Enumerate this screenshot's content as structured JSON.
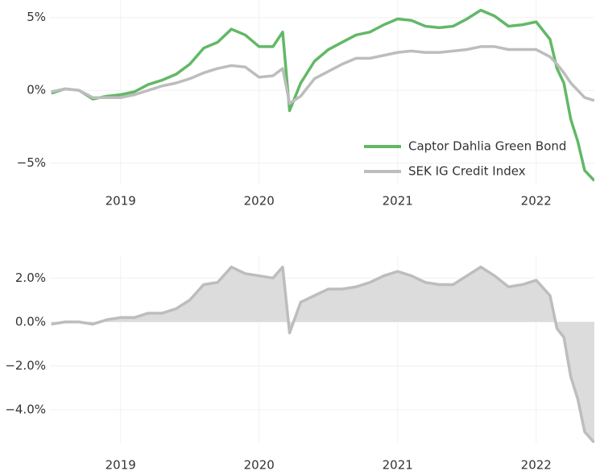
{
  "chart_data": [
    {
      "type": "line",
      "x": [
        2018.5,
        2018.6,
        2018.7,
        2018.8,
        2018.9,
        2019.0,
        2019.1,
        2019.2,
        2019.3,
        2019.4,
        2019.5,
        2019.6,
        2019.7,
        2019.8,
        2019.9,
        2020.0,
        2020.1,
        2020.17,
        2020.22,
        2020.3,
        2020.4,
        2020.5,
        2020.6,
        2020.7,
        2020.8,
        2020.9,
        2021.0,
        2021.1,
        2021.2,
        2021.3,
        2021.4,
        2021.5,
        2021.6,
        2021.7,
        2021.8,
        2021.9,
        2022.0,
        2022.1,
        2022.15,
        2022.2,
        2022.25,
        2022.3,
        2022.35,
        2022.42
      ],
      "series": [
        {
          "name": "Captor Dahlia Green Bond",
          "color": "#62b866",
          "values": [
            -0.2,
            0.1,
            0.0,
            -0.6,
            -0.4,
            -0.3,
            -0.1,
            0.4,
            0.7,
            1.1,
            1.8,
            2.9,
            3.3,
            4.2,
            3.8,
            3.0,
            3.0,
            4.0,
            -1.4,
            0.5,
            2.0,
            2.8,
            3.3,
            3.8,
            4.0,
            4.5,
            4.9,
            4.8,
            4.4,
            4.3,
            4.4,
            4.9,
            5.5,
            5.1,
            4.4,
            4.5,
            4.7,
            3.5,
            1.5,
            0.5,
            -2.0,
            -3.5,
            -5.5,
            -6.2
          ]
        },
        {
          "name": "SEK IG Credit Index",
          "color": "#bdbdbd",
          "values": [
            -0.1,
            0.1,
            0.0,
            -0.5,
            -0.5,
            -0.5,
            -0.3,
            0.0,
            0.3,
            0.5,
            0.8,
            1.2,
            1.5,
            1.7,
            1.6,
            0.9,
            1.0,
            1.5,
            -0.9,
            -0.4,
            0.8,
            1.3,
            1.8,
            2.2,
            2.2,
            2.4,
            2.6,
            2.7,
            2.6,
            2.6,
            2.7,
            2.8,
            3.0,
            3.0,
            2.8,
            2.8,
            2.8,
            2.3,
            1.8,
            1.2,
            0.5,
            0.0,
            -0.5,
            -0.7
          ]
        }
      ],
      "xlim": [
        2018.49,
        2022.42
      ],
      "xticks": [
        2019,
        2020,
        2021,
        2022
      ],
      "ylim": [
        -6.4,
        6.2
      ],
      "yticks": [
        {
          "value": -5,
          "label": "−5%"
        },
        {
          "value": 0,
          "label": "0%"
        },
        {
          "value": 5,
          "label": "5%"
        }
      ],
      "grid": true,
      "legend": "lower right"
    },
    {
      "type": "area",
      "x": [
        2018.5,
        2018.6,
        2018.7,
        2018.8,
        2018.9,
        2019.0,
        2019.1,
        2019.2,
        2019.3,
        2019.4,
        2019.5,
        2019.6,
        2019.7,
        2019.8,
        2019.9,
        2020.0,
        2020.1,
        2020.17,
        2020.22,
        2020.3,
        2020.4,
        2020.5,
        2020.6,
        2020.7,
        2020.8,
        2020.9,
        2021.0,
        2021.1,
        2021.2,
        2021.3,
        2021.4,
        2021.5,
        2021.6,
        2021.7,
        2021.8,
        2021.9,
        2022.0,
        2022.1,
        2022.15,
        2022.2,
        2022.25,
        2022.3,
        2022.35,
        2022.42
      ],
      "series": [
        {
          "color": "#bdbdbd",
          "values": [
            -0.1,
            0.0,
            0.0,
            -0.1,
            0.1,
            0.2,
            0.2,
            0.4,
            0.4,
            0.6,
            1.0,
            1.7,
            1.8,
            2.5,
            2.2,
            2.1,
            2.0,
            2.5,
            -0.5,
            0.9,
            1.2,
            1.5,
            1.5,
            1.6,
            1.8,
            2.1,
            2.3,
            2.1,
            1.8,
            1.7,
            1.7,
            2.1,
            2.5,
            2.1,
            1.6,
            1.7,
            1.9,
            1.2,
            -0.3,
            -0.7,
            -2.5,
            -3.5,
            -5.0,
            -5.5
          ]
        }
      ],
      "xlim": [
        2018.49,
        2022.42
      ],
      "xticks": [
        2019,
        2020,
        2021,
        2022
      ],
      "ylim": [
        -5.5,
        3.0
      ],
      "yticks": [
        {
          "value": -4,
          "label": "−4.0%"
        },
        {
          "value": -2,
          "label": "−2.0%"
        },
        {
          "value": 0,
          "label": "0.0%"
        },
        {
          "value": 2,
          "label": "2.0%"
        }
      ],
      "grid": true
    }
  ]
}
